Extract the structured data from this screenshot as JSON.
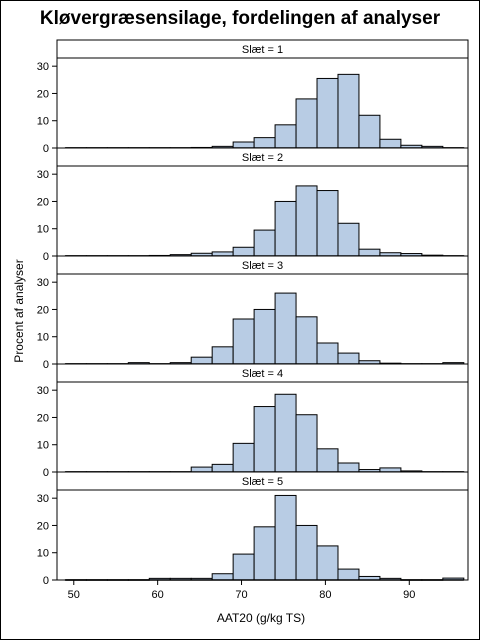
{
  "chart_data": {
    "type": "bar",
    "title": "Kløvergræsensilage, fordelingen af analyser",
    "xlabel": "AAT20 (g/kg TS)",
    "ylabel": "Procent af analyser",
    "xlim": [
      48,
      97
    ],
    "ylim": [
      0,
      33
    ],
    "xticks": [
      50,
      60,
      70,
      80,
      90
    ],
    "yticks": [
      0,
      10,
      20,
      30
    ],
    "bin_width": 2.5,
    "bin_starts": [
      49,
      51.5,
      54,
      56.5,
      59,
      61.5,
      64,
      66.5,
      69,
      71.5,
      74,
      76.5,
      79,
      81.5,
      84,
      86.5,
      89,
      91.5,
      94
    ],
    "bar_fill": "#b8cce4",
    "panels": [
      {
        "label": "Slæt = 1",
        "values": [
          0.1,
          0.1,
          0.1,
          0.1,
          0.1,
          0.1,
          0.2,
          0.6,
          2.2,
          3.8,
          8.5,
          18,
          25.5,
          27,
          12,
          3.2,
          1,
          0.6,
          0.1
        ]
      },
      {
        "label": "Slæt = 2",
        "values": [
          0.1,
          0.1,
          0.1,
          0.1,
          0.2,
          0.5,
          1,
          1.5,
          3.2,
          9.5,
          20,
          25.7,
          24,
          12,
          2.5,
          1.2,
          0.9,
          0.3,
          0.1
        ]
      },
      {
        "label": "Slæt = 3",
        "values": [
          0.1,
          0.1,
          0.1,
          0.5,
          0.1,
          0.5,
          2.5,
          6.3,
          16.5,
          20,
          26,
          17.3,
          7.7,
          4,
          1.2,
          0.3,
          0.1,
          0.1,
          0.5
        ]
      },
      {
        "label": "Slæt = 4",
        "values": [
          0.1,
          0.1,
          0.1,
          0.1,
          0.1,
          0.1,
          1.8,
          2.8,
          10.5,
          24,
          28.5,
          21,
          8.5,
          3.3,
          0.9,
          1.5,
          0.4,
          0.1,
          0.1
        ]
      },
      {
        "label": "Slæt = 5",
        "values": [
          0.1,
          0.1,
          0.1,
          0.1,
          0.6,
          0.6,
          0.6,
          2.3,
          9.5,
          19.5,
          31,
          20,
          12.5,
          4,
          1.3,
          0.6,
          0.1,
          0.1,
          0.7
        ]
      }
    ]
  }
}
